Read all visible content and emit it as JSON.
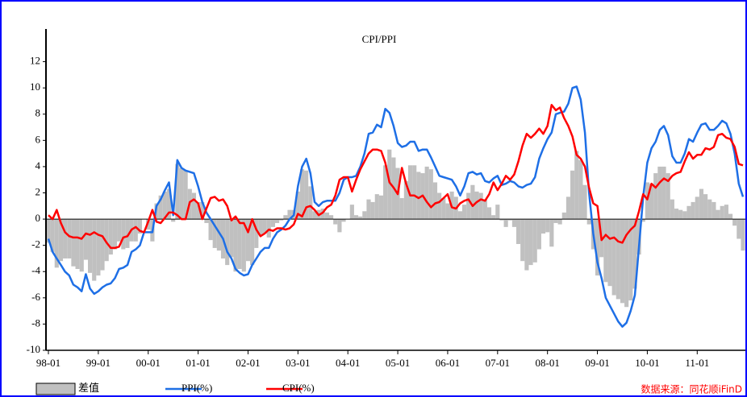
{
  "chart_data": {
    "type": "combo",
    "title": "CPI/PPI",
    "source": "数据来源：同花顺iFinD",
    "categories": [
      "98-01",
      null,
      null,
      null,
      null,
      null,
      null,
      null,
      null,
      null,
      null,
      null,
      "99-01",
      null,
      null,
      null,
      null,
      null,
      null,
      null,
      null,
      null,
      null,
      null,
      "00-01",
      null,
      null,
      null,
      null,
      null,
      null,
      null,
      null,
      null,
      null,
      null,
      "01-01",
      null,
      null,
      null,
      null,
      null,
      null,
      null,
      null,
      null,
      null,
      null,
      "02-01",
      null,
      null,
      null,
      null,
      null,
      null,
      null,
      null,
      null,
      null,
      null,
      "03-01",
      null,
      null,
      null,
      null,
      null,
      null,
      null,
      null,
      null,
      null,
      null,
      "04-01",
      null,
      null,
      null,
      null,
      null,
      null,
      null,
      null,
      null,
      null,
      null,
      "05-01",
      null,
      null,
      null,
      null,
      null,
      null,
      null,
      null,
      null,
      null,
      null,
      "06-01",
      null,
      null,
      null,
      null,
      null,
      null,
      null,
      null,
      null,
      null,
      null,
      "07-01",
      null,
      null,
      null,
      null,
      null,
      null,
      null,
      null,
      null,
      null,
      null,
      "08-01",
      null,
      null,
      null,
      null,
      null,
      null,
      null,
      null,
      null,
      null,
      null,
      "09-01",
      null,
      null,
      null,
      null,
      null,
      null,
      null,
      null,
      null,
      null,
      null,
      "10-01",
      null,
      null,
      null,
      null,
      null,
      null,
      null,
      null,
      null,
      null,
      null,
      "11-01",
      null,
      null,
      null,
      null,
      null,
      null,
      null,
      null,
      null,
      null,
      null
    ],
    "series": [
      {
        "name": "差值",
        "type": "bar",
        "color": "#c0c0c0",
        "values": [
          -1.8,
          -2.5,
          -3.7,
          -3.2,
          -3,
          -3,
          -3.6,
          -3.8,
          -4,
          -3.1,
          -4.1,
          -4.7,
          -4.3,
          -3.9,
          -3.2,
          -2.7,
          -2.3,
          -1.7,
          -2.3,
          -2.2,
          -1.7,
          -1.7,
          -1.1,
          0,
          -0.8,
          -1.7,
          1.2,
          1.8,
          2.1,
          2.3,
          -0.2,
          4.2,
          3.9,
          3.7,
          2.3,
          2,
          1.3,
          1.3,
          -0.3,
          -1.6,
          -2.2,
          -2.4,
          -3,
          -3.5,
          -2.9,
          -4,
          -3.8,
          -4,
          -3.2,
          -3.5,
          -2.2,
          -1.2,
          -1.1,
          -1.4,
          -0.6,
          -0.3,
          -0.1,
          0.3,
          0.7,
          0.7,
          2.1,
          3.8,
          3.7,
          2.5,
          0.6,
          0.7,
          0.8,
          0.5,
          0.3,
          -0.4,
          -1,
          -0.2,
          0,
          1.1,
          0.3,
          0.2,
          0.6,
          1.5,
          1.3,
          1.9,
          1.8,
          4.1,
          5.3,
          4.7,
          3.9,
          1.6,
          2.9,
          4.1,
          4.1,
          3.6,
          3.5,
          4,
          3.8,
          2.8,
          2,
          1.6,
          1.2,
          2.1,
          1.7,
          0.6,
          1.1,
          2,
          2.6,
          2.1,
          2,
          1.5,
          0.9,
          0.3,
          1.1,
          -0.1,
          -0.6,
          -0.1,
          -0.6,
          -1.9,
          -3.2,
          -3.9,
          -3.5,
          -3.3,
          -2.3,
          -1.1,
          -1,
          -2.1,
          -0.3,
          -0.4,
          0.5,
          1.7,
          3.7,
          5.2,
          4.5,
          2.6,
          -0.4,
          -2.3,
          -4.3,
          -2.9,
          -4.8,
          -5.1,
          -5.8,
          -6.1,
          -6.4,
          -6.7,
          -6.2,
          -5.3,
          -2.7,
          -0.2,
          2.8,
          2.7,
          3.5,
          4,
          4,
          3.5,
          1.5,
          0.8,
          0.7,
          0.6,
          1,
          1.3,
          1.7,
          2.3,
          1.9,
          1.5,
          1.3,
          0.7,
          1,
          1.1,
          0.4,
          -0.5,
          -1.5,
          -2.4
        ]
      },
      {
        "name": "PPI(%)",
        "type": "line",
        "color": "#1e6fe6",
        "values": [
          -1.5,
          -2.5,
          -3,
          -3.5,
          -4,
          -4.3,
          -5,
          -5.2,
          -5.5,
          -4.2,
          -5.3,
          -5.7,
          -5.5,
          -5.2,
          -5,
          -4.9,
          -4.5,
          -3.8,
          -3.7,
          -3.5,
          -2.5,
          -2.3,
          -2,
          -1,
          -1,
          -1,
          1,
          1.5,
          2.2,
          2.8,
          0.3,
          4.5,
          3.9,
          3.7,
          3.6,
          3.5,
          2.5,
          1.3,
          0.5,
          0,
          -0.5,
          -1,
          -1.5,
          -2.5,
          -3,
          -3.8,
          -4.1,
          -4.3,
          -4.2,
          -3.5,
          -3,
          -2.5,
          -2.2,
          -2.2,
          -1.5,
          -1,
          -0.8,
          -0.5,
          0,
          0.3,
          2.5,
          4,
          4.6,
          3.5,
          1.3,
          1,
          1.3,
          1.4,
          1.4,
          1.4,
          2,
          3,
          3.2,
          3.2,
          3.3,
          4,
          5,
          6.5,
          6.6,
          7.2,
          7,
          8.4,
          8.1,
          7.1,
          5.8,
          5.5,
          5.6,
          5.9,
          5.9,
          5.2,
          5.3,
          5.3,
          4.7,
          4,
          3.3,
          3.2,
          3.1,
          3,
          2.5,
          1.8,
          2.5,
          3.5,
          3.6,
          3.4,
          3.5,
          2.9,
          2.8,
          3.1,
          3.3,
          2.6,
          2.7,
          2.9,
          2.8,
          2.5,
          2.4,
          2.6,
          2.7,
          3.2,
          4.6,
          5.4,
          6.1,
          6.6,
          8,
          8.1,
          8.2,
          8.8,
          10,
          10.1,
          9.1,
          6.6,
          2,
          -1.1,
          -3.3,
          -4.5,
          -6,
          -6.6,
          -7.2,
          -7.8,
          -8.2,
          -7.9,
          -7,
          -5.8,
          -2.1,
          1.7,
          4.3,
          5.4,
          5.9,
          6.8,
          7.1,
          6.4,
          4.8,
          4.3,
          4.3,
          5,
          6.1,
          5.9,
          6.6,
          7.2,
          7.3,
          6.8,
          6.8,
          7.1,
          7.5,
          7.3,
          6.5,
          5,
          2.7,
          1.7
        ]
      },
      {
        "name": "CPI(%)",
        "type": "line",
        "color": "#ff0000",
        "values": [
          0.3,
          0,
          0.7,
          -0.3,
          -1,
          -1.3,
          -1.4,
          -1.4,
          -1.5,
          -1.1,
          -1.2,
          -1,
          -1.2,
          -1.3,
          -1.8,
          -2.2,
          -2.2,
          -2.1,
          -1.4,
          -1.3,
          -0.8,
          -0.6,
          -0.9,
          -1,
          -0.2,
          0.7,
          -0.2,
          -0.3,
          0.1,
          0.5,
          0.5,
          0.3,
          0,
          0,
          1.3,
          1.5,
          1.2,
          0,
          0.8,
          1.6,
          1.7,
          1.4,
          1.5,
          1,
          -0.1,
          0.2,
          -0.3,
          -0.3,
          -1,
          0,
          -0.8,
          -1.3,
          -1.1,
          -0.8,
          -0.9,
          -0.7,
          -0.7,
          -0.8,
          -0.7,
          -0.4,
          0.4,
          0.2,
          0.9,
          1,
          0.7,
          0.3,
          0.5,
          0.9,
          1.1,
          1.8,
          3,
          3.2,
          3.2,
          2.1,
          3,
          3.8,
          4.4,
          5,
          5.3,
          5.3,
          5.2,
          4.3,
          2.8,
          2.4,
          1.9,
          3.9,
          2.7,
          1.8,
          1.8,
          1.6,
          1.8,
          1.3,
          0.9,
          1.2,
          1.3,
          1.6,
          1.9,
          0.9,
          0.8,
          1.2,
          1.4,
          1.5,
          1,
          1.3,
          1.5,
          1.4,
          1.9,
          2.8,
          2.2,
          2.7,
          3.3,
          3,
          3.4,
          4.4,
          5.6,
          6.5,
          6.2,
          6.5,
          6.9,
          6.5,
          7.1,
          8.7,
          8.3,
          8.5,
          7.7,
          7.1,
          6.3,
          4.9,
          4.6,
          4,
          2.4,
          1.2,
          1,
          -1.6,
          -1.2,
          -1.5,
          -1.4,
          -1.7,
          -1.8,
          -1.2,
          -0.8,
          -0.5,
          0.6,
          1.9,
          1.5,
          2.7,
          2.4,
          2.8,
          3.1,
          2.9,
          3.3,
          3.5,
          3.6,
          4.4,
          5.1,
          4.6,
          4.9,
          4.9,
          5.4,
          5.3,
          5.5,
          6.4,
          6.5,
          6.2,
          6.1,
          5.5,
          4.2,
          4.1
        ]
      }
    ],
    "ylim": [
      -10,
      14
    ],
    "yticks": [
      -10,
      -8,
      -6,
      -4,
      -2,
      0,
      2,
      4,
      6,
      8,
      10,
      12
    ]
  }
}
